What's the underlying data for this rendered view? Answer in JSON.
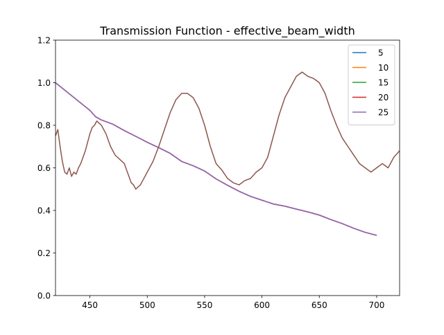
{
  "chart_data": {
    "type": "line",
    "title": "Transmission Function - effective_beam_width",
    "xlabel": "",
    "ylabel": "",
    "xlim": [
      420,
      720
    ],
    "ylim": [
      0.0,
      1.2
    ],
    "xticks": [
      450,
      500,
      550,
      600,
      650,
      700
    ],
    "yticks": [
      0.0,
      0.2,
      0.4,
      0.6,
      0.8,
      1.0,
      1.2
    ],
    "grid": false,
    "legend_position": "top-right",
    "series": [
      {
        "name": "5",
        "color": "#1f77b4",
        "x": [
          420,
          450,
          455,
          460,
          470,
          480,
          490,
          500,
          510,
          520,
          530,
          540,
          550,
          560,
          570,
          580,
          590,
          600,
          610,
          620,
          630,
          640,
          650,
          660,
          670,
          680,
          690,
          700
        ],
        "y": [
          1.0,
          0.87,
          0.84,
          0.825,
          0.805,
          0.775,
          0.748,
          0.72,
          0.695,
          0.668,
          0.63,
          0.61,
          0.585,
          0.548,
          0.518,
          0.49,
          0.466,
          0.448,
          0.43,
          0.42,
          0.406,
          0.393,
          0.378,
          0.357,
          0.338,
          0.316,
          0.297,
          0.283
        ]
      },
      {
        "name": "10",
        "color": "#ff7f0e",
        "x": [
          420,
          450,
          455,
          460,
          470,
          480,
          490,
          500,
          510,
          520,
          530,
          540,
          550,
          560,
          570,
          580,
          590,
          600,
          610,
          620,
          630,
          640,
          650,
          660,
          670,
          680,
          690,
          700
        ],
        "y": [
          1.0,
          0.87,
          0.84,
          0.825,
          0.805,
          0.775,
          0.748,
          0.72,
          0.695,
          0.668,
          0.63,
          0.61,
          0.585,
          0.548,
          0.518,
          0.49,
          0.466,
          0.448,
          0.43,
          0.42,
          0.406,
          0.393,
          0.378,
          0.357,
          0.338,
          0.316,
          0.297,
          0.283
        ]
      },
      {
        "name": "15",
        "color": "#2ca02c",
        "x": [
          420,
          450,
          455,
          460,
          470,
          480,
          490,
          500,
          510,
          520,
          530,
          540,
          550,
          560,
          570,
          580,
          590,
          600,
          610,
          620,
          630,
          640,
          650,
          660,
          670,
          680,
          690,
          700
        ],
        "y": [
          1.0,
          0.87,
          0.84,
          0.825,
          0.805,
          0.775,
          0.748,
          0.72,
          0.695,
          0.668,
          0.63,
          0.61,
          0.585,
          0.548,
          0.518,
          0.49,
          0.466,
          0.448,
          0.43,
          0.42,
          0.406,
          0.393,
          0.378,
          0.357,
          0.338,
          0.316,
          0.297,
          0.283
        ]
      },
      {
        "name": "20",
        "color": "#d62728",
        "x": [
          420,
          450,
          455,
          460,
          470,
          480,
          490,
          500,
          510,
          520,
          530,
          540,
          550,
          560,
          570,
          580,
          590,
          600,
          610,
          620,
          630,
          640,
          650,
          660,
          670,
          680,
          690,
          700
        ],
        "y": [
          1.0,
          0.87,
          0.84,
          0.825,
          0.805,
          0.775,
          0.748,
          0.72,
          0.695,
          0.668,
          0.63,
          0.61,
          0.585,
          0.548,
          0.518,
          0.49,
          0.466,
          0.448,
          0.43,
          0.42,
          0.406,
          0.393,
          0.378,
          0.357,
          0.338,
          0.316,
          0.297,
          0.283
        ]
      },
      {
        "name": "25",
        "color": "#9467bd",
        "x": [
          420,
          450,
          455,
          460,
          470,
          480,
          490,
          500,
          510,
          520,
          530,
          540,
          550,
          560,
          570,
          580,
          590,
          600,
          610,
          620,
          630,
          640,
          650,
          660,
          670,
          680,
          690,
          700
        ],
        "y": [
          1.0,
          0.87,
          0.84,
          0.825,
          0.805,
          0.775,
          0.748,
          0.72,
          0.695,
          0.668,
          0.63,
          0.61,
          0.585,
          0.548,
          0.518,
          0.49,
          0.466,
          0.448,
          0.43,
          0.42,
          0.406,
          0.393,
          0.378,
          0.357,
          0.338,
          0.316,
          0.297,
          0.283
        ]
      },
      {
        "color": "#8c564b",
        "x": [
          420,
          422,
          424,
          426,
          428,
          430,
          432,
          434,
          436,
          438,
          440,
          442,
          444,
          446,
          448,
          450,
          452,
          454,
          456,
          458,
          460,
          462,
          464,
          466,
          468,
          470,
          472,
          474,
          476,
          478,
          480,
          482,
          484,
          486,
          488,
          490,
          492,
          494,
          496,
          498,
          500,
          505,
          510,
          515,
          520,
          525,
          530,
          535,
          540,
          545,
          550,
          555,
          560,
          565,
          570,
          575,
          580,
          585,
          590,
          595,
          600,
          605,
          610,
          615,
          620,
          625,
          630,
          635,
          640,
          645,
          650,
          655,
          660,
          665,
          670,
          675,
          680,
          685,
          690,
          695,
          700,
          705,
          710,
          715,
          720
        ],
        "y": [
          0.75,
          0.78,
          0.7,
          0.63,
          0.58,
          0.57,
          0.6,
          0.56,
          0.58,
          0.57,
          0.6,
          0.62,
          0.65,
          0.68,
          0.72,
          0.76,
          0.79,
          0.8,
          0.82,
          0.81,
          0.8,
          0.78,
          0.76,
          0.73,
          0.7,
          0.68,
          0.66,
          0.65,
          0.64,
          0.63,
          0.62,
          0.59,
          0.56,
          0.53,
          0.52,
          0.5,
          0.51,
          0.52,
          0.54,
          0.56,
          0.58,
          0.63,
          0.7,
          0.78,
          0.86,
          0.92,
          0.95,
          0.95,
          0.93,
          0.88,
          0.8,
          0.7,
          0.62,
          0.59,
          0.55,
          0.53,
          0.52,
          0.54,
          0.55,
          0.58,
          0.6,
          0.65,
          0.75,
          0.85,
          0.93,
          0.98,
          1.03,
          1.05,
          1.03,
          1.02,
          1.0,
          0.95,
          0.87,
          0.8,
          0.74,
          0.7,
          0.66,
          0.62,
          0.6,
          0.58,
          0.6,
          0.62,
          0.6,
          0.65,
          0.68
        ]
      }
    ]
  }
}
